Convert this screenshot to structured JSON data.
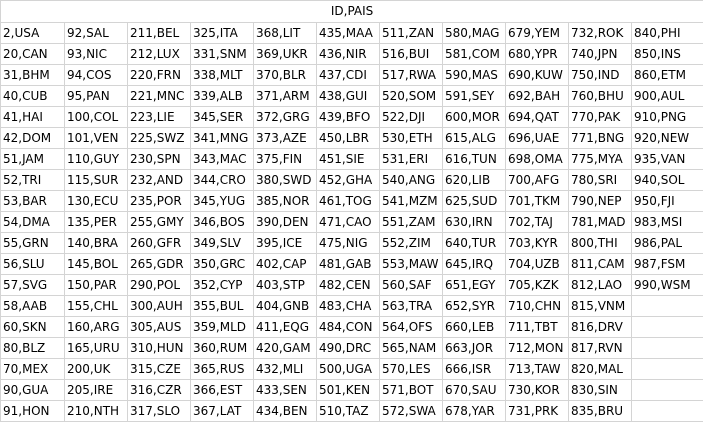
{
  "sheet": {
    "header": "ID,PAIS",
    "rows": [
      [
        "2,USA",
        "92,SAL",
        "211,BEL",
        "325,ITA",
        "368,LIT",
        "435,MAA",
        "511,ZAN",
        "580,MAG",
        "679,YEM",
        "732,ROK",
        "840,PHI"
      ],
      [
        "20,CAN",
        "93,NIC",
        "212,LUX",
        "331,SNM",
        "369,UKR",
        "436,NIR",
        "516,BUI",
        "581,COM",
        "680,YPR",
        "740,JPN",
        "850,INS"
      ],
      [
        "31,BHM",
        "94,COS",
        "220,FRN",
        "338,MLT",
        "370,BLR",
        "437,CDI",
        "517,RWA",
        "590,MAS",
        "690,KUW",
        "750,IND",
        "860,ETM"
      ],
      [
        "40,CUB",
        "95,PAN",
        "221,MNC",
        "339,ALB",
        "371,ARM",
        "438,GUI",
        "520,SOM",
        "591,SEY",
        "692,BAH",
        "760,BHU",
        "900,AUL"
      ],
      [
        "41,HAI",
        "100,COL",
        "223,LIE",
        "345,SER",
        "372,GRG",
        "439,BFO",
        "522,DJI",
        "600,MOR",
        "694,QAT",
        "770,PAK",
        "910,PNG"
      ],
      [
        "42,DOM",
        "101,VEN",
        "225,SWZ",
        "341,MNG",
        "373,AZE",
        "450,LBR",
        "530,ETH",
        "615,ALG",
        "696,UAE",
        "771,BNG",
        "920,NEW"
      ],
      [
        "51,JAM",
        "110,GUY",
        "230,SPN",
        "343,MAC",
        "375,FIN",
        "451,SIE",
        "531,ERI",
        "616,TUN",
        "698,OMA",
        "775,MYA",
        "935,VAN"
      ],
      [
        "52,TRI",
        "115,SUR",
        "232,AND",
        "344,CRO",
        "380,SWD",
        "452,GHA",
        "540,ANG",
        "620,LIB",
        "700,AFG",
        "780,SRI",
        "940,SOL"
      ],
      [
        "53,BAR",
        "130,ECU",
        "235,POR",
        "345,YUG",
        "385,NOR",
        "461,TOG",
        "541,MZM",
        "625,SUD",
        "701,TKM",
        "790,NEP",
        "950,FJI"
      ],
      [
        "54,DMA",
        "135,PER",
        "255,GMY",
        "346,BOS",
        "390,DEN",
        "471,CAO",
        "551,ZAM",
        "630,IRN",
        "702,TAJ",
        "781,MAD",
        "983,MSI"
      ],
      [
        "55,GRN",
        "140,BRA",
        "260,GFR",
        "349,SLV",
        "395,ICE",
        "475,NIG",
        "552,ZIM",
        "640,TUR",
        "703,KYR",
        "800,THI",
        "986,PAL"
      ],
      [
        "56,SLU",
        "145,BOL",
        "265,GDR",
        "350,GRC",
        "402,CAP",
        "481,GAB",
        "553,MAW",
        "645,IRQ",
        "704,UZB",
        "811,CAM",
        "987,FSM"
      ],
      [
        "57,SVG",
        "150,PAR",
        "290,POL",
        "352,CYP",
        "403,STP",
        "482,CEN",
        "560,SAF",
        "651,EGY",
        "705,KZK",
        "812,LAO",
        "990,WSM"
      ],
      [
        "58,AAB",
        "155,CHL",
        "300,AUH",
        "355,BUL",
        "404,GNB",
        "483,CHA",
        "563,TRA",
        "652,SYR",
        "710,CHN",
        "815,VNM",
        ""
      ],
      [
        "60,SKN",
        "160,ARG",
        "305,AUS",
        "359,MLD",
        "411,EQG",
        "484,CON",
        "564,OFS",
        "660,LEB",
        "711,TBT",
        "816,DRV",
        ""
      ],
      [
        "80,BLZ",
        "165,URU",
        "310,HUN",
        "360,RUM",
        "420,GAM",
        "490,DRC",
        "565,NAM",
        "663,JOR",
        "712,MON",
        "817,RVN",
        ""
      ],
      [
        "70,MEX",
        "200,UK",
        "315,CZE",
        "365,RUS",
        "432,MLI",
        "500,UGA",
        "570,LES",
        "666,ISR",
        "713,TAW",
        "820,MAL",
        ""
      ],
      [
        "90,GUA",
        "205,IRE",
        "316,CZR",
        "366,EST",
        "433,SEN",
        "501,KEN",
        "571,BOT",
        "670,SAU",
        "730,KOR",
        "830,SIN",
        ""
      ],
      [
        "91,HON",
        "210,NTH",
        "317,SLO",
        "367,LAT",
        "434,BEN",
        "510,TAZ",
        "572,SWA",
        "678,YAR",
        "731,PRK",
        "835,BRU",
        ""
      ]
    ]
  }
}
